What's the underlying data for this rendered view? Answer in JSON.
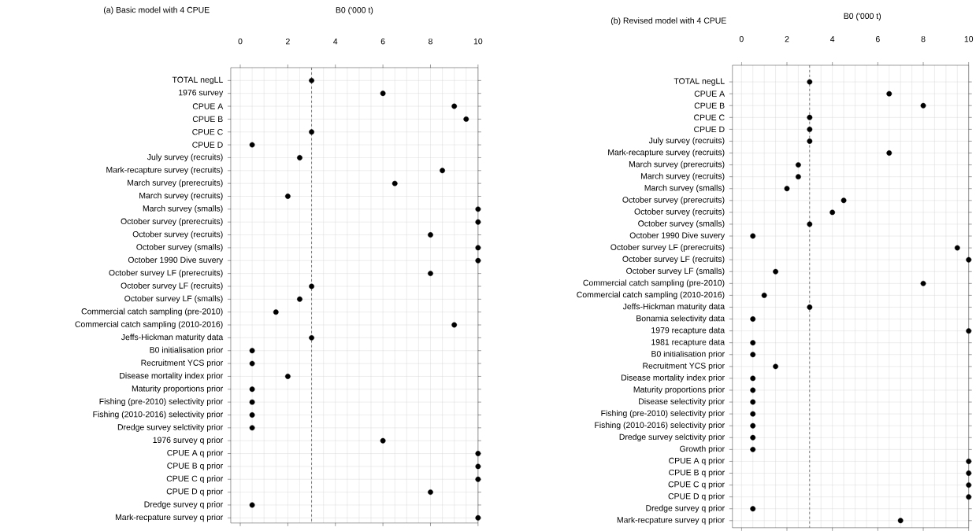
{
  "chart_data": [
    {
      "type": "scatter",
      "orientation": "horizontal",
      "title": "(a) Basic model with 4 CPUE",
      "xlabel": "B0 ('000 t)",
      "categories": [
        "TOTAL negLL",
        "1976 survey",
        "CPUE A",
        "CPUE B",
        "CPUE C",
        "CPUE D",
        "July survey (recruits)",
        "Mark-recapture survey (recruits)",
        "March survey (prerecruits)",
        "March survey (recruits)",
        "March survey (smalls)",
        "October survey (prerecruits)",
        "October survey (recruits)",
        "October survey (smalls)",
        "October 1990 Dive suvery",
        "October survey LF (prerecruits)",
        "October survey LF (recruits)",
        "October survey LF (smalls)",
        "Commercial catch sampling (pre-2010)",
        "Commercial catch sampling (2010-2016)",
        "Jeffs-Hickman maturity data",
        "B0 initialisation prior",
        "Recruitment YCS prior",
        "Disease mortality index prior",
        "Maturity proportions prior",
        "Fishing (pre-2010) selectivity prior",
        "Fishing (2010-2016) selectivity prior",
        "Dredge survey selctivity prior",
        "1976 survey q prior",
        "CPUE A q prior",
        "CPUE B q prior",
        "CPUE C q prior",
        "CPUE D q prior",
        "Dredge survey q prior",
        "Mark-recpature survey q prior"
      ],
      "values": [
        3,
        6,
        9,
        9.5,
        3,
        0.5,
        2.5,
        8.5,
        6.5,
        2,
        10,
        10,
        8,
        10,
        10,
        8,
        3,
        2.5,
        1.5,
        9,
        3,
        0.5,
        0.5,
        2,
        0.5,
        0.5,
        0.5,
        0.5,
        6,
        10,
        10,
        10,
        8,
        0.5,
        10
      ],
      "color": "#000000",
      "xlim": [
        -0.4,
        10
      ],
      "xticks": [
        0,
        2,
        4,
        6,
        8,
        10
      ],
      "grid": true,
      "ref_lines": [
        {
          "axis": "x",
          "value": 3,
          "color": "#555555",
          "line_style": "dashed"
        }
      ]
    },
    {
      "type": "scatter",
      "orientation": "horizontal",
      "title": "(b) Revised model with 4 CPUE",
      "xlabel": "B0 ('000 t)",
      "categories": [
        "TOTAL negLL",
        "CPUE A",
        "CPUE B",
        "CPUE C",
        "CPUE D",
        "July survey (recruits)",
        "Mark-recapture survey (recruits)",
        "March survey (prerecruits)",
        "March survey (recruits)",
        "March survey (smalls)",
        "October survey (prerecruits)",
        "October survey (recruits)",
        "October survey (smalls)",
        "October 1990 Dive suvery",
        "October survey LF (prerecruits)",
        "October survey LF (recruits)",
        "October survey LF (smalls)",
        "Commercial catch sampling (pre-2010)",
        "Commercial catch sampling (2010-2016)",
        "Jeffs-Hickman maturity data",
        "Bonamia selectivity data",
        "1979 recapture data",
        "1981 recapture data",
        "B0 initialisation prior",
        "Recruitment YCS prior",
        "Disease mortality index prior",
        "Maturity proportions prior",
        "Disease selectivity prior",
        "Fishing (pre-2010) selectivity prior",
        "Fishing (2010-2016) selectivity prior",
        "Dredge survey selctivity prior",
        "Growth prior",
        "CPUE A q prior",
        "CPUE B q prior",
        "CPUE C q prior",
        "CPUE D q prior",
        "Dredge survey q prior",
        "Mark-recpature survey q prior"
      ],
      "values": [
        3,
        6.5,
        8,
        3,
        3,
        3,
        6.5,
        2.5,
        2.5,
        2,
        4.5,
        4,
        3,
        0.5,
        9.5,
        10,
        1.5,
        8,
        1,
        3,
        0.5,
        10,
        0.5,
        0.5,
        1.5,
        0.5,
        0.5,
        0.5,
        0.5,
        0.5,
        0.5,
        0.5,
        10,
        10,
        10,
        10,
        0.5,
        7
      ],
      "color": "#000000",
      "xlim": [
        -0.4,
        10
      ],
      "xticks": [
        0,
        2,
        4,
        6,
        8,
        10
      ],
      "grid": true,
      "ref_lines": [
        {
          "axis": "x",
          "value": 3,
          "color": "#555555",
          "line_style": "dashed"
        }
      ]
    }
  ]
}
